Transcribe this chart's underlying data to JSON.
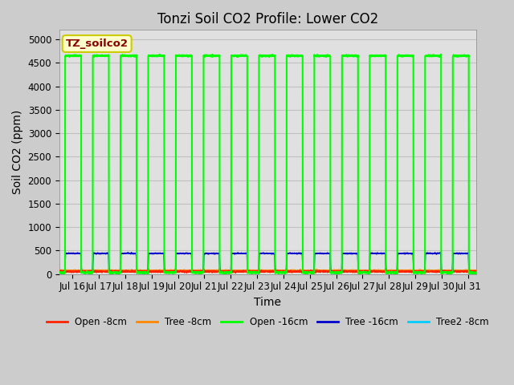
{
  "title": "Tonzi Soil CO2 Profile: Lower CO2",
  "ylabel": "Soil CO2 (ppm)",
  "xlabel": "Time",
  "ylim": [
    0,
    5200
  ],
  "yticks": [
    0,
    500,
    1000,
    1500,
    2000,
    2500,
    3000,
    3500,
    4000,
    4500,
    5000
  ],
  "xlim_days": [
    15.5,
    31.3
  ],
  "xtick_days": [
    16,
    17,
    18,
    19,
    20,
    21,
    22,
    23,
    24,
    25,
    26,
    27,
    28,
    29,
    30,
    31
  ],
  "xtick_labels": [
    "Jul 16",
    "Jul 17",
    "Jul 18",
    "Jul 19",
    "Jul 20",
    "Jul 21",
    "Jul 22",
    "Jul 23",
    "Jul 24",
    "Jul 25",
    "Jul 26",
    "Jul 27",
    "Jul 28",
    "Jul 29",
    "Jul 30",
    "Jul 31"
  ],
  "legend_label": "TZ_soilco2",
  "legend_box_color": "#ffffcc",
  "legend_border_color": "#cccc00",
  "legend_text_color": "#8b0000",
  "series": {
    "open_8cm": {
      "label": "Open -8cm",
      "color": "#ff2200",
      "lw": 1.0
    },
    "tree_8cm": {
      "label": "Tree -8cm",
      "color": "#ff8800",
      "lw": 1.0
    },
    "open_16cm": {
      "label": "Open -16cm",
      "color": "#00ff00",
      "lw": 1.5
    },
    "tree_16cm": {
      "label": "Tree -16cm",
      "color": "#0000cc",
      "lw": 1.2
    },
    "tree2_8cm": {
      "label": "Tree2 -8cm",
      "color": "#00ccff",
      "lw": 1.0
    }
  },
  "green_high": 4650,
  "green_low": 30,
  "blue_high": 440,
  "blue_low": 30,
  "red_base": 55,
  "orange_base": 75,
  "cyan_base": 70,
  "bg_color": "#cccccc",
  "plot_bg_color": "#e0e0e0",
  "grid_color": "#c0c0c0",
  "title_fontsize": 12,
  "axis_label_fontsize": 10,
  "tick_fontsize": 8.5
}
